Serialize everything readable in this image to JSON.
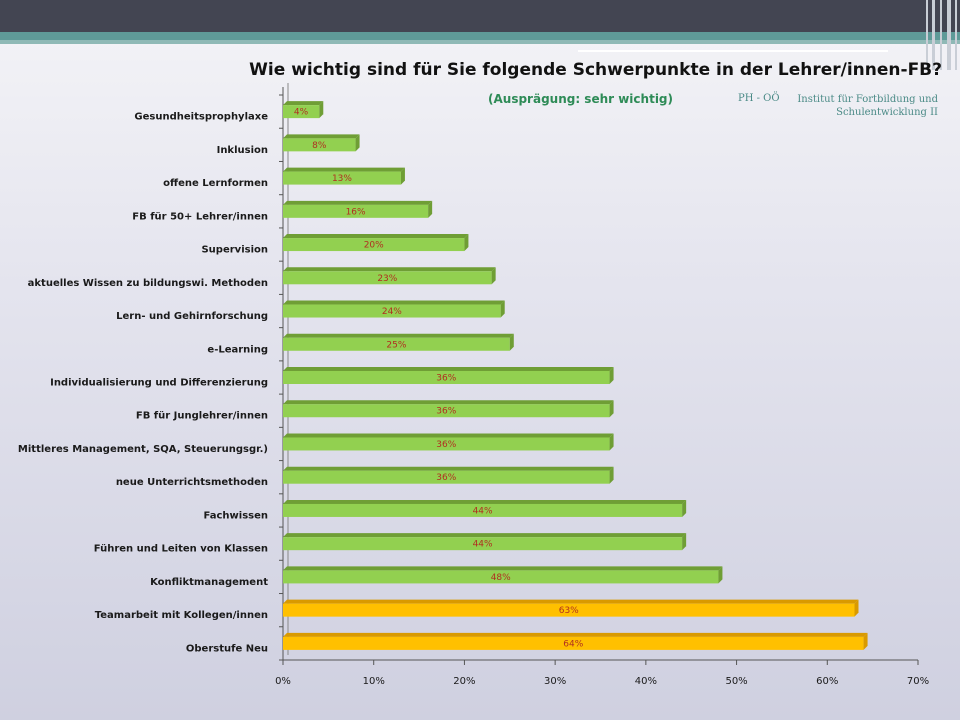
{
  "header": {
    "title": "Wie wichtig sind für Sie folgende Schwerpunkte in der Lehrer/innen-FB?",
    "subtitle": "(Ausprägung: sehr wichtig)",
    "org_short": "PH - OÖ",
    "institute_line1": "Institut für Fortbildung und",
    "institute_line2": "Schulentwicklung II"
  },
  "colors": {
    "bar_green": "#92d050",
    "bar_green_side": "#6f9e35",
    "bar_orange": "#ffc000",
    "bar_orange_side": "#d99a00",
    "accent_teal": "#5f9a98"
  },
  "chart_data": {
    "type": "bar",
    "orientation": "horizontal",
    "title": "Wie wichtig sind für Sie folgende Schwerpunkte in der Lehrer/innen-FB?",
    "subtitle": "(Ausprägung: sehr wichtig)",
    "xlim": [
      0,
      70
    ],
    "x_ticks": [
      "0%",
      "10%",
      "20%",
      "30%",
      "40%",
      "50%",
      "60%",
      "70%"
    ],
    "grid": false,
    "legend": "none",
    "categories": [
      "Gesundheitsprophylaxe",
      "Inklusion",
      "offene Lernformen",
      "FB für 50+ Lehrer/innen",
      "Supervision",
      "aktuelles Wissen zu bildungswi. Methoden",
      "Lern- und Gehirnforschung",
      "e-Learning",
      "Individualisierung und Differenzierung",
      "FB für Junglehrer/innen",
      "Mittleres Management, SQA, Steuerungsgr.)",
      "neue Unterrichtsmethoden",
      "Fachwissen",
      "Führen und Leiten von Klassen",
      "Konfliktmanagement",
      "Teamarbeit mit Kollegen/innen",
      "Oberstufe Neu"
    ],
    "values": [
      4,
      8,
      13,
      16,
      20,
      23,
      24,
      25,
      36,
      36,
      36,
      36,
      44,
      44,
      48,
      63,
      64
    ],
    "labels": [
      "4%",
      "8%",
      "13%",
      "16%",
      "20%",
      "23%",
      "24%",
      "25%",
      "36%",
      "36%",
      "36%",
      "36%",
      "44%",
      "44%",
      "48%",
      "63%",
      "64%"
    ],
    "highlight": [
      false,
      false,
      false,
      false,
      false,
      false,
      false,
      false,
      false,
      false,
      false,
      false,
      false,
      false,
      false,
      true,
      true
    ]
  }
}
